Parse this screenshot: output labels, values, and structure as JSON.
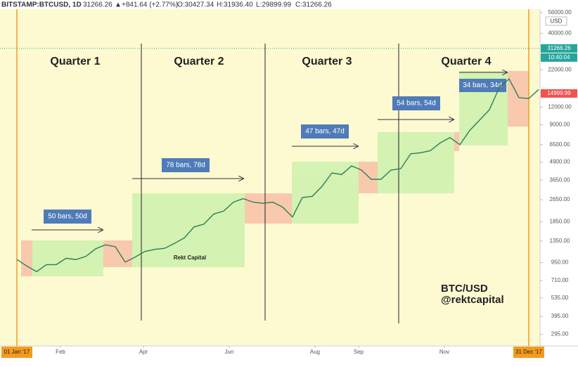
{
  "chart_data": {
    "type": "line",
    "header": {
      "symbol": "BITSTAMP:BTCUSD, 1D",
      "last": "31266.26",
      "change": "+841.64 (+2.77%)",
      "open": "O:30427.34",
      "high": "H:31936.40",
      "low": "L:29899.99",
      "close": "C:31266.26"
    },
    "currency": "USD",
    "countdown": "10:40:04",
    "quarters": [
      "Quarter 1",
      "Quarter 2",
      "Quarter 3",
      "Quarter 4"
    ],
    "range_labels": [
      "50 bars, 50d",
      "78 bars, 78d",
      "47 bars, 47d",
      "54 bars, 54d",
      "34 bars, 34d"
    ],
    "watermark": "Rekt Capital",
    "caption": [
      "BTC/USD",
      "@rektcapital"
    ],
    "log_scale": true,
    "grid": false,
    "color": "#2e7d5b",
    "xlim": [
      "2016-12-20",
      "2018-01-08"
    ],
    "xticks": [
      {
        "value": "2017-01-01",
        "label": "01 Jan '17"
      },
      {
        "value": "2017-02-01",
        "label": "Feb"
      },
      {
        "value": "2017-04-01",
        "label": "Apr"
      },
      {
        "value": "2017-06-01",
        "label": "Jun"
      },
      {
        "value": "2017-08-01",
        "label": "Aug"
      },
      {
        "value": "2017-09-01",
        "label": "Sep"
      },
      {
        "value": "2017-11-01",
        "label": "Nov"
      },
      {
        "value": "2017-12-31",
        "label": "31 Dec '17"
      }
    ],
    "ylim": [
      250,
      60000
    ],
    "yticks": [
      {
        "value": 56000,
        "label": "56000.00"
      },
      {
        "value": 40000,
        "label": "40000.00"
      },
      {
        "value": 22000,
        "label": "22000.00"
      },
      {
        "value": 12000,
        "label": "12000.00"
      },
      {
        "value": 9000,
        "label": "9000.00"
      },
      {
        "value": 6500,
        "label": "6500.00"
      },
      {
        "value": 4900,
        "label": "4900.00"
      },
      {
        "value": 3650,
        "label": "3650.00"
      },
      {
        "value": 2650,
        "label": "2650.00"
      },
      {
        "value": 1850,
        "label": "1850.00"
      },
      {
        "value": 1350,
        "label": "1350.00"
      },
      {
        "value": 950,
        "label": "950.00"
      },
      {
        "value": 710,
        "label": "710.00"
      },
      {
        "value": 535,
        "label": "535.00"
      },
      {
        "value": 395,
        "label": "395.00"
      },
      {
        "value": 295,
        "label": "295.00"
      }
    ],
    "price_markers": [
      {
        "value": 31266.26,
        "color": "#26a69a"
      },
      {
        "value": 14999.99,
        "color": "#ef5350"
      }
    ],
    "x": [
      "2017-01-01",
      "2017-01-08",
      "2017-01-15",
      "2017-01-22",
      "2017-01-29",
      "2017-02-05",
      "2017-02-12",
      "2017-02-19",
      "2017-02-26",
      "2017-03-05",
      "2017-03-12",
      "2017-03-19",
      "2017-03-26",
      "2017-04-02",
      "2017-04-09",
      "2017-04-16",
      "2017-04-23",
      "2017-04-30",
      "2017-05-07",
      "2017-05-14",
      "2017-05-21",
      "2017-05-28",
      "2017-06-04",
      "2017-06-11",
      "2017-06-18",
      "2017-06-25",
      "2017-07-02",
      "2017-07-09",
      "2017-07-16",
      "2017-07-23",
      "2017-07-30",
      "2017-08-06",
      "2017-08-13",
      "2017-08-20",
      "2017-08-27",
      "2017-09-03",
      "2017-09-10",
      "2017-09-17",
      "2017-09-24",
      "2017-10-01",
      "2017-10-08",
      "2017-10-15",
      "2017-10-22",
      "2017-10-29",
      "2017-11-05",
      "2017-11-12",
      "2017-11-19",
      "2017-11-26",
      "2017-12-03",
      "2017-12-10",
      "2017-12-17",
      "2017-12-24",
      "2017-12-31",
      "2018-01-07"
    ],
    "values": [
      1000,
      900,
      820,
      920,
      920,
      1020,
      1000,
      1050,
      1190,
      1270,
      1230,
      960,
      1040,
      1140,
      1180,
      1200,
      1300,
      1420,
      1700,
      1780,
      2100,
      2200,
      2550,
      2700,
      2550,
      2500,
      2550,
      2350,
      2000,
      2750,
      2800,
      3300,
      4100,
      4000,
      4600,
      4300,
      3700,
      3700,
      4300,
      4400,
      5600,
      5700,
      5900,
      6700,
      7300,
      6500,
      8200,
      9700,
      11500,
      16500,
      19000,
      14000,
      13800,
      16000
    ]
  }
}
